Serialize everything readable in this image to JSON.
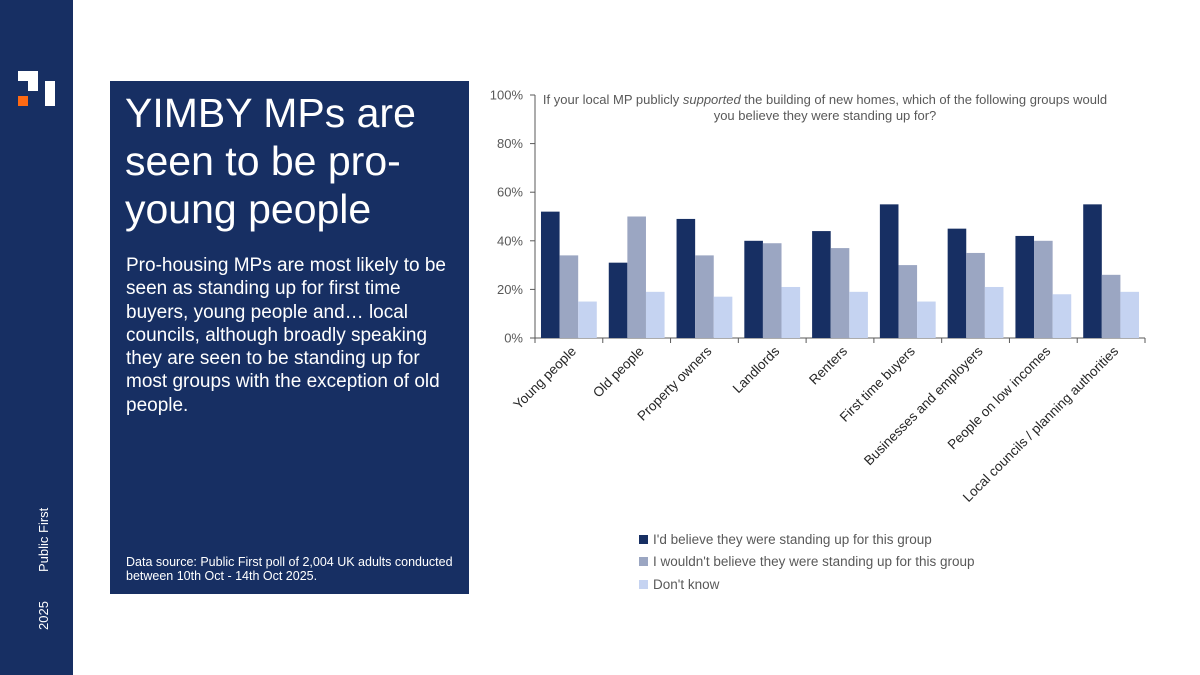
{
  "sidebar": {
    "brand": "Public First",
    "year": "2025",
    "colors": {
      "background": "#172f63",
      "logo_white": "#ffffff",
      "logo_orange": "#ff6a13"
    }
  },
  "panel": {
    "title": "YIMBY MPs are seen to be pro-young people",
    "body": "Pro-housing MPs are most likely to be seen as standing up for first time buyers, young people and… local councils, although broadly speaking they are seen to be standing up for most groups with the exception of old people.",
    "source": "Data source: Public First poll of 2,004 UK adults conducted between 10th Oct - 14th Oct 2025.",
    "background": "#172f63"
  },
  "chart_data": {
    "type": "bar",
    "title_parts": [
      "If your local MP publicly ",
      "supported",
      " the building of new homes, which of the following groups would you believe they were standing up for?"
    ],
    "categories": [
      "Young people",
      "Old people",
      "Property owners",
      "Landlords",
      "Renters",
      "First time buyers",
      "Businesses and employers",
      "People on low incomes",
      "Local councils / planning authorities"
    ],
    "series": [
      {
        "name": "I'd believe they were standing up for this group",
        "color": "#172f63",
        "values": [
          52,
          31,
          49,
          40,
          44,
          55,
          45,
          42,
          55
        ]
      },
      {
        "name": "I wouldn't believe they were standing up for this group",
        "color": "#9ba6c2",
        "values": [
          34,
          50,
          34,
          39,
          37,
          30,
          35,
          40,
          26
        ]
      },
      {
        "name": "Don't know",
        "color": "#c5d3f1",
        "values": [
          15,
          19,
          17,
          21,
          19,
          15,
          21,
          18,
          19
        ]
      }
    ],
    "y_ticks": [
      "0%",
      "20%",
      "40%",
      "60%",
      "80%",
      "100%"
    ],
    "ylim": [
      0,
      100
    ],
    "grid": false,
    "legend_position": "bottom"
  }
}
